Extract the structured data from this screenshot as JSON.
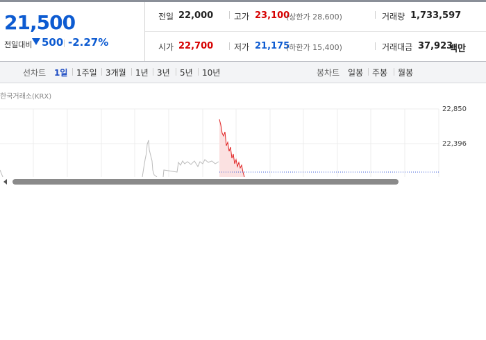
{
  "quote": {
    "price": "21,500",
    "change_label": "전일대비",
    "change": "500",
    "change_rate": "-2.27%"
  },
  "stats": [
    {
      "label": "전일",
      "value": "22,000"
    },
    {
      "label": "고가",
      "value": "23,100",
      "note": "(상한가 28,600)"
    },
    {
      "label": "거래량",
      "value": "1,733,597"
    },
    {
      "label": "시가",
      "value": "22,700"
    },
    {
      "label": "저가",
      "value": "21,175",
      "note": "(하한가 15,400)"
    },
    {
      "label": "거래대금",
      "value": "37,923",
      "unit": "백만"
    }
  ],
  "toolbar": {
    "line_chart": "선차트",
    "periods": [
      "1일",
      "1주일",
      "3개월",
      "1년",
      "3년",
      "5년",
      "10년"
    ],
    "candle_chart": "봉차트",
    "candles": [
      "일봉",
      "주봉",
      "월봉"
    ]
  },
  "chart": {
    "source": "한국거래소(KRX)",
    "y_labels": [
      "22,850",
      "22,396"
    ]
  }
}
